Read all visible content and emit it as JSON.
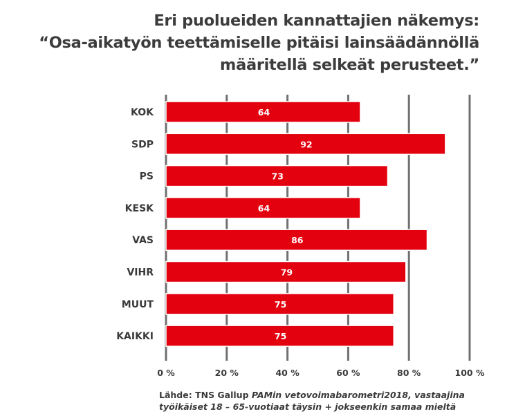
{
  "chart_data": {
    "type": "bar",
    "orientation": "horizontal",
    "title_lines": [
      "Eri puolueiden kannattajien näkemys:",
      "“Osa-aikatyön teettämiselle pitäisi lainsäädännöllä",
      "määritellä selkeät perusteet.”"
    ],
    "categories": [
      "KOK",
      "SDP",
      "PS",
      "KESK",
      "VAS",
      "VIHR",
      "MUUT",
      "KAIKKI"
    ],
    "values": [
      64,
      92,
      73,
      64,
      86,
      79,
      75,
      75
    ],
    "xlim": [
      0,
      100
    ],
    "x_ticks": [
      0,
      20,
      40,
      60,
      80,
      100
    ],
    "x_tick_labels": [
      "0 %",
      "20 %",
      "40 %",
      "60 %",
      "80 %",
      "100 %"
    ],
    "grid": "vertical",
    "bar_color": "#e3000f",
    "grid_color": "#707070"
  },
  "source": {
    "prefix": "Lähde: TNS Gallup ",
    "italic_1": "PAMin vetovoimabarometri2018, vastaajina",
    "italic_2": "työikäiset 18 – 65-vuotiaat täysin + jokseenkin samaa mieltä"
  }
}
